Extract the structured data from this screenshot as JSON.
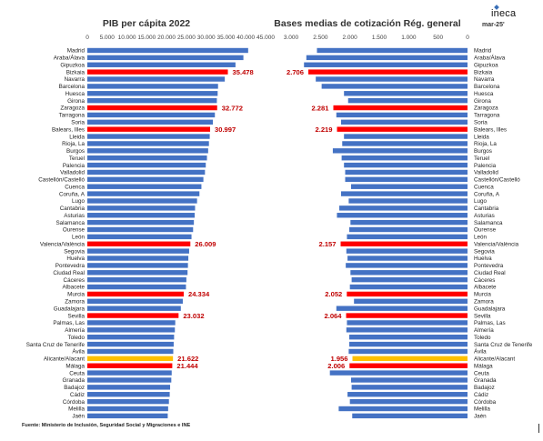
{
  "brand": "ineca",
  "source_note": "Fuente: Ministerio de Inclusión, Seguridad Social y Migraciones e INE",
  "colors": {
    "bar": "#4472c4",
    "highlight": "#ff0000",
    "highlight_alt": "#ffc000",
    "label": "#c00000"
  },
  "provinces": [
    "Madrid",
    "Araba/Álava",
    "Gipuzkoa",
    "Bizkaia",
    "Navarra",
    "Barcelona",
    "Huesca",
    "Girona",
    "Zaragoza",
    "Tarragona",
    "Soria",
    "Balears, Illes",
    "Lleida",
    "Rioja, La",
    "Burgos",
    "Teruel",
    "Palencia",
    "Valladolid",
    "Castellón/Castelló",
    "Cuenca",
    "Coruña, A",
    "Lugo",
    "Cantabria",
    "Asturias",
    "Salamanca",
    "Ourense",
    "León",
    "Valencia/València",
    "Segovia",
    "Huelva",
    "Pontevedra",
    "Ciudad Real",
    "Cáceres",
    "Albacete",
    "Murcia",
    "Zamora",
    "Guadalajara",
    "Sevilla",
    "Palmas, Las",
    "Almería",
    "Toledo",
    "Santa Cruz de Tenerife",
    "Ávila",
    "Alicante/Alacant",
    "Málaga",
    "Ceuta",
    "Granada",
    "Badajoz",
    "Cádiz",
    "Córdoba",
    "Melilla",
    "Jaén"
  ],
  "chart_data": [
    {
      "type": "bar",
      "orientation": "horizontal",
      "title": "PIB per cápita 2022",
      "xlim": [
        0,
        45000
      ],
      "ticks": [
        "0",
        "5.000",
        "10.000",
        "15.000",
        "20.000",
        "25.000",
        "30.000",
        "35.000",
        "40.000",
        "45.000"
      ],
      "values": [
        40600,
        39400,
        37400,
        35478,
        34700,
        33000,
        32900,
        32700,
        32772,
        32200,
        31700,
        30997,
        30900,
        30700,
        30500,
        30200,
        29900,
        29700,
        29300,
        28800,
        28300,
        27700,
        27200,
        27100,
        26900,
        26700,
        26300,
        26009,
        25700,
        25500,
        25400,
        25300,
        25000,
        24900,
        24334,
        24100,
        23600,
        23032,
        22200,
        22100,
        21900,
        21800,
        21700,
        21622,
        21444,
        21300,
        21200,
        20900,
        20800,
        20600,
        20400,
        20300
      ],
      "highlighted": {
        "Bizkaia": "35.478",
        "Zaragoza": "32.772",
        "Balears, Illes": "30.997",
        "Valencia/València": "26.009",
        "Murcia": "24.334",
        "Sevilla": "23.032",
        "Alicante/Alacant": "21.622",
        "Málaga": "21.444"
      },
      "highlight_colors": {
        "Alicante/Alacant": "#ffc000"
      }
    },
    {
      "type": "bar",
      "orientation": "horizontal-reversed",
      "title": "Bases medias de cotización Rég. general",
      "title_suffix": "mar-25'",
      "xlim": [
        0,
        3000
      ],
      "ticks": [
        "3.000",
        "2.500",
        "2.000",
        "1.500",
        "1.000",
        "500",
        "0"
      ],
      "values": [
        2560,
        2740,
        2780,
        2706,
        2580,
        2480,
        2100,
        2030,
        2281,
        2230,
        2150,
        2219,
        2100,
        2130,
        2290,
        2140,
        2100,
        2080,
        2080,
        1980,
        2150,
        2020,
        2180,
        2220,
        1990,
        2010,
        2050,
        2157,
        2060,
        2040,
        2070,
        1990,
        1970,
        2000,
        2052,
        1930,
        2230,
        2064,
        2050,
        2060,
        2010,
        2010,
        2020,
        1956,
        2006,
        2340,
        1980,
        1970,
        2040,
        2000,
        2190,
        1960
      ],
      "highlighted": {
        "Bizkaia": "2.706",
        "Zaragoza": "2.281",
        "Balears, Illes": "2.219",
        "Valencia/València": "2.157",
        "Murcia": "2.052",
        "Sevilla": "2.064",
        "Alicante/Alacant": "1.956",
        "Málaga": "2.006"
      },
      "highlight_colors": {
        "Alicante/Alacant": "#ffc000"
      }
    }
  ]
}
